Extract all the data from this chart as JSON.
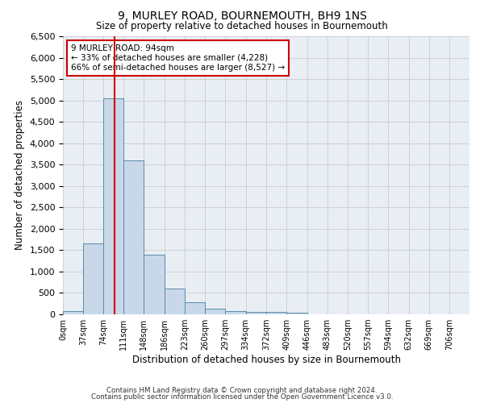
{
  "title1": "9, MURLEY ROAD, BOURNEMOUTH, BH9 1NS",
  "title2": "Size of property relative to detached houses in Bournemouth",
  "xlabel": "Distribution of detached houses by size in Bournemouth",
  "ylabel": "Number of detached properties",
  "bin_edges": [
    0,
    37,
    74,
    111,
    148,
    186,
    223,
    260,
    297,
    334,
    372,
    409,
    446,
    483,
    520,
    557,
    594,
    632,
    669,
    706,
    743
  ],
  "bar_heights": [
    75,
    1650,
    5050,
    3600,
    1400,
    600,
    280,
    130,
    75,
    55,
    55,
    40,
    0,
    0,
    0,
    0,
    0,
    0,
    0,
    0
  ],
  "bar_color": "#c8d8e8",
  "bar_edgecolor": "#5a8aaa",
  "grid_color": "#cccccc",
  "bg_color": "#e8eef4",
  "fig_bg_color": "#ffffff",
  "vline_x": 94,
  "vline_color": "#cc0000",
  "annotation_text": "9 MURLEY ROAD: 94sqm\n← 33% of detached houses are smaller (4,228)\n66% of semi-detached houses are larger (8,527) →",
  "annotation_box_color": "#ffffff",
  "annotation_box_edgecolor": "#cc0000",
  "ylim": [
    0,
    6500
  ],
  "yticks": [
    0,
    500,
    1000,
    1500,
    2000,
    2500,
    3000,
    3500,
    4000,
    4500,
    5000,
    5500,
    6000,
    6500
  ],
  "footer1": "Contains HM Land Registry data © Crown copyright and database right 2024.",
  "footer2": "Contains public sector information licensed under the Open Government Licence v3.0."
}
